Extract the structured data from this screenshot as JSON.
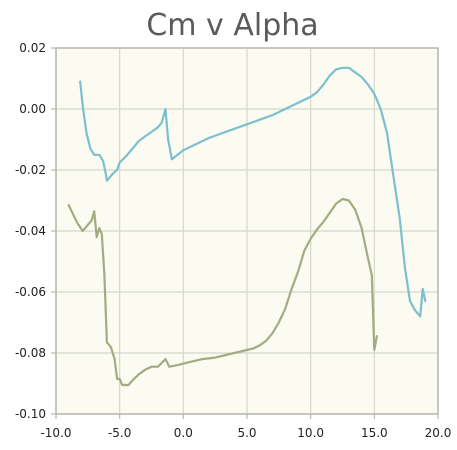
{
  "chart_data": {
    "type": "line",
    "title": "Cm v Alpha",
    "xlabel": "",
    "ylabel": "",
    "xlim": [
      -10.0,
      20.0
    ],
    "ylim": [
      -0.1,
      0.02
    ],
    "x_ticks": [
      "-10.0",
      "-5.0",
      "0.0",
      "5.0",
      "10.0",
      "15.0",
      "20.0"
    ],
    "y_ticks": [
      "0.02",
      "0.00",
      "-0.02",
      "-0.04",
      "-0.06",
      "-0.08",
      "-0.10"
    ],
    "grid": true,
    "background_color": "#fcfbf1",
    "series": [
      {
        "color": "#7cbfcf",
        "points": [
          [
            -8.1,
            0.009
          ],
          [
            -7.9,
            0.001
          ],
          [
            -7.6,
            -0.008
          ],
          [
            -7.3,
            -0.013
          ],
          [
            -7.0,
            -0.015
          ],
          [
            -6.6,
            -0.015
          ],
          [
            -6.3,
            -0.017
          ],
          [
            -6.1,
            -0.021
          ],
          [
            -6.0,
            -0.0235
          ],
          [
            -5.8,
            -0.0225
          ],
          [
            -5.5,
            -0.021
          ],
          [
            -5.2,
            -0.02
          ],
          [
            -5.0,
            -0.0175
          ],
          [
            -4.5,
            -0.0155
          ],
          [
            -4.0,
            -0.013
          ],
          [
            -3.5,
            -0.0105
          ],
          [
            -3.0,
            -0.009
          ],
          [
            -2.5,
            -0.0075
          ],
          [
            -2.0,
            -0.006
          ],
          [
            -1.7,
            -0.0045
          ],
          [
            -1.4,
            0.0
          ],
          [
            -1.2,
            -0.01
          ],
          [
            -0.9,
            -0.0165
          ],
          [
            -0.6,
            -0.0155
          ],
          [
            0.0,
            -0.0135
          ],
          [
            1.0,
            -0.0115
          ],
          [
            2.0,
            -0.0095
          ],
          [
            3.0,
            -0.008
          ],
          [
            4.0,
            -0.0065
          ],
          [
            5.0,
            -0.005
          ],
          [
            6.0,
            -0.0035
          ],
          [
            7.0,
            -0.002
          ],
          [
            8.0,
            0.0
          ],
          [
            9.0,
            0.002
          ],
          [
            10.0,
            0.004
          ],
          [
            10.5,
            0.0055
          ],
          [
            11.0,
            0.008
          ],
          [
            11.5,
            0.011
          ],
          [
            12.0,
            0.013
          ],
          [
            12.5,
            0.0135
          ],
          [
            13.0,
            0.0135
          ],
          [
            13.5,
            0.012
          ],
          [
            14.0,
            0.0105
          ],
          [
            14.5,
            0.008
          ],
          [
            15.0,
            0.005
          ],
          [
            15.5,
            0.0
          ],
          [
            16.0,
            -0.008
          ],
          [
            16.5,
            -0.022
          ],
          [
            17.0,
            -0.036
          ],
          [
            17.4,
            -0.052
          ],
          [
            17.8,
            -0.063
          ],
          [
            18.2,
            -0.066
          ],
          [
            18.6,
            -0.068
          ],
          [
            18.8,
            -0.059
          ],
          [
            19.0,
            -0.063
          ]
        ]
      },
      {
        "color": "#a3ac80",
        "points": [
          [
            -9.0,
            -0.0315
          ],
          [
            -8.6,
            -0.035
          ],
          [
            -8.3,
            -0.0375
          ],
          [
            -7.9,
            -0.04
          ],
          [
            -7.5,
            -0.038
          ],
          [
            -7.2,
            -0.0365
          ],
          [
            -7.0,
            -0.0335
          ],
          [
            -6.8,
            -0.042
          ],
          [
            -6.6,
            -0.039
          ],
          [
            -6.4,
            -0.041
          ],
          [
            -6.2,
            -0.0545
          ],
          [
            -6.0,
            -0.0765
          ],
          [
            -5.7,
            -0.078
          ],
          [
            -5.4,
            -0.082
          ],
          [
            -5.2,
            -0.0885
          ],
          [
            -5.0,
            -0.0885
          ],
          [
            -4.8,
            -0.0905
          ],
          [
            -4.3,
            -0.0905
          ],
          [
            -4.0,
            -0.089
          ],
          [
            -3.5,
            -0.087
          ],
          [
            -3.0,
            -0.0855
          ],
          [
            -2.5,
            -0.0845
          ],
          [
            -2.0,
            -0.0845
          ],
          [
            -1.4,
            -0.082
          ],
          [
            -1.1,
            -0.0845
          ],
          [
            -0.5,
            -0.084
          ],
          [
            0.5,
            -0.083
          ],
          [
            1.5,
            -0.082
          ],
          [
            2.5,
            -0.0815
          ],
          [
            3.5,
            -0.0805
          ],
          [
            4.5,
            -0.0795
          ],
          [
            5.5,
            -0.0785
          ],
          [
            6.0,
            -0.0775
          ],
          [
            6.5,
            -0.076
          ],
          [
            7.0,
            -0.0735
          ],
          [
            7.5,
            -0.07
          ],
          [
            8.0,
            -0.0655
          ],
          [
            8.5,
            -0.059
          ],
          [
            9.0,
            -0.0535
          ],
          [
            9.5,
            -0.0465
          ],
          [
            10.0,
            -0.0425
          ],
          [
            10.5,
            -0.0395
          ],
          [
            11.0,
            -0.037
          ],
          [
            11.5,
            -0.034
          ],
          [
            12.0,
            -0.031
          ],
          [
            12.5,
            -0.0295
          ],
          [
            13.0,
            -0.03
          ],
          [
            13.5,
            -0.033
          ],
          [
            14.0,
            -0.039
          ],
          [
            14.4,
            -0.047
          ],
          [
            14.8,
            -0.0545
          ],
          [
            15.0,
            -0.079
          ],
          [
            15.2,
            -0.0745
          ]
        ]
      }
    ]
  }
}
